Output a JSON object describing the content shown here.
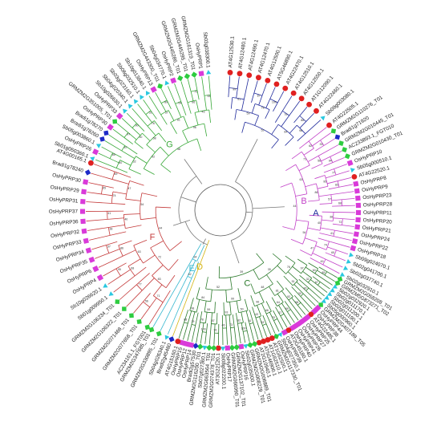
{
  "clades": [
    {
      "id": "A",
      "label": "A",
      "color": "#1f2a9b",
      "leaves": [
        "AT4G12530.1",
        "AT4G12480.1",
        "AT4G12490.1",
        "AT4G12470.1",
        "AT4G12500.1",
        "AT5G46890.1",
        "AT4G22470.1",
        "AT4G12510.1",
        "AT4G12550.1",
        "AT1G12090.1",
        "AT4G22460.1",
        "Sb09g003080.1"
      ]
    },
    {
      "id": "B",
      "label": "B",
      "color": "#c242c8",
      "leaves": [
        "AT4G22505.1",
        "GRMZM2G110276_T01",
        "Bradi1g71920",
        "GRMZM2G010445_T01",
        "AC233893.1_FGT010",
        "GRMZM2G010430_T01",
        "OsHyPRP10",
        "Sb05g000510.1",
        "AT4G22520.1",
        "OsHyPRP8",
        "OsHyPRP9",
        "OsHyPRP23",
        "OsHyPRP28",
        "OsHyPRP11",
        "OsHyPRP20",
        "OsHyPRP21",
        "OsHyPRP24",
        "OsHyPRP22",
        "OsHyPRP18",
        "Sb09g024070.1",
        "Sb02g041700.1",
        "Sb02g037740.1",
        "Sb02g032910.1"
      ]
    },
    {
      "id": "C",
      "label": "C",
      "color": "#2b7a2b",
      "leaves": [
        "GRMZM2G058208_T01",
        "GRMZM5G873271_T02",
        "Sb02g032920.1",
        "Sb02g011170.1",
        "Sb02g011200.1",
        "Sb02g011190.1",
        "Sb05g000960.1",
        "GRMZM2G407189_T05",
        "OsHyPRP44",
        "OsHyPRP38",
        "AT4G22485.1",
        "OsHyPRP25",
        "OsHyPRP27",
        "OsHyPRP26",
        "OsHyPRP41",
        "OsHyPRP40",
        "AT2G45180.1",
        "OsHyPRP39",
        "Sb04g027350.1",
        "GRMZM2G117330_T01",
        "AT1G62500.1",
        "AT1G62510.1",
        "AT5G46900.1",
        "AT2G10940.1",
        "GRMZM2G006889_T01",
        "GRMZM2G008229_T01",
        "Sb02g035000.1",
        "OsHyPRP16",
        "GRMZM2G137102_T01",
        "GRMZM2G066990_T01",
        "OsHyPRP17",
        "Sb08g022200.1",
        "AT3G22120.1",
        "GRMZM2G074378_T01",
        "GRMZM2G063564_T01",
        "Sb07g027360.1",
        "GRMZM2G116200_T01",
        "Bradi2g57530",
        "OsHyPRP14",
        "OsHyPRP12",
        "OsHyPRP15",
        "AT4G15160.1"
      ]
    },
    {
      "id": "D",
      "label": "D",
      "color": "#d4b412",
      "leaves": [
        "Bradi2g45480"
      ]
    },
    {
      "id": "E",
      "label": "E",
      "color": "#36b7cf",
      "leaves": [
        "Sb04g026340.1",
        "GRMZM2G330895_T01",
        "GRMZM2G347685_T01"
      ]
    },
    {
      "id": "F",
      "label": "F",
      "color": "#c43a3a",
      "leaves": [
        "AC234161.1_FGT001",
        "GRMZM2G077658_T01",
        "GRMZM2G071468_T01",
        "GRMZM2G106322_T01",
        "GRMZM2G106234_T01",
        "Sb01g009950.1",
        "Sb10g026620.1",
        "OsHyPRP4",
        "OsHyPRP6",
        "OsHyPRP35",
        "OsHyPRP34",
        "OsHyPRP33",
        "OsHyPRP32",
        "OsHyPRP36",
        "OsHyPRP37",
        "OsHyPRP31",
        "OsHyPRP29",
        "OsHyPRP30",
        "Bradi1g78240",
        "AT4G00165.1"
      ]
    },
    {
      "id": "G",
      "label": "G",
      "color": "#38a838",
      "leaves": [
        "Sb01g050360.1",
        "OsHyPRP26",
        "Sb05g003860.1",
        "Bradi1g78260",
        "Bradi1g78270",
        "OsHyPRP30",
        "GRMZM2G351005_T01",
        "OsHyPRP33",
        "Sb10g026630.1",
        "Sb04g020340.1",
        "Sb03g023160.1",
        "Sb06g032510.1",
        "Sb10g013840.1",
        "OsHyPRP13",
        "GRMZM2G443300_T01",
        "Sb04g034770.1",
        "OsHyPRP2",
        "GRMZM2G445286_T01",
        "GRMZM2G445295_T01",
        "GRMZM2G161319_T01",
        "OsHyPRP1",
        "Sb03g038300.1"
      ]
    }
  ],
  "legend_colors": {
    "AT": "#e02020",
    "Os": "#d93ad9",
    "GRMZM": "#2ecc40",
    "Sb": "#2ac8e0",
    "Bradi": "#1e2bc8",
    "AC": "#2ecc40"
  },
  "support_values": [
    "99",
    "91",
    "87",
    "100",
    "78",
    "59",
    "79",
    "88",
    "98",
    "84",
    "52",
    "39",
    "62",
    "94",
    "56",
    "71",
    "77",
    "83",
    "95",
    "68",
    "57",
    "86",
    "63",
    "72",
    "38",
    "41",
    "40",
    "65",
    "74",
    "49",
    "47",
    "54",
    "44",
    "85",
    "60",
    "67",
    "32",
    "97",
    "90",
    "30",
    "51",
    "76",
    "58",
    "92",
    "89",
    "37",
    "64",
    "81",
    "70",
    "66",
    "53",
    "43",
    "96",
    "48",
    "35",
    "61",
    "100",
    "82",
    "50",
    "73",
    "46",
    "93"
  ]
}
